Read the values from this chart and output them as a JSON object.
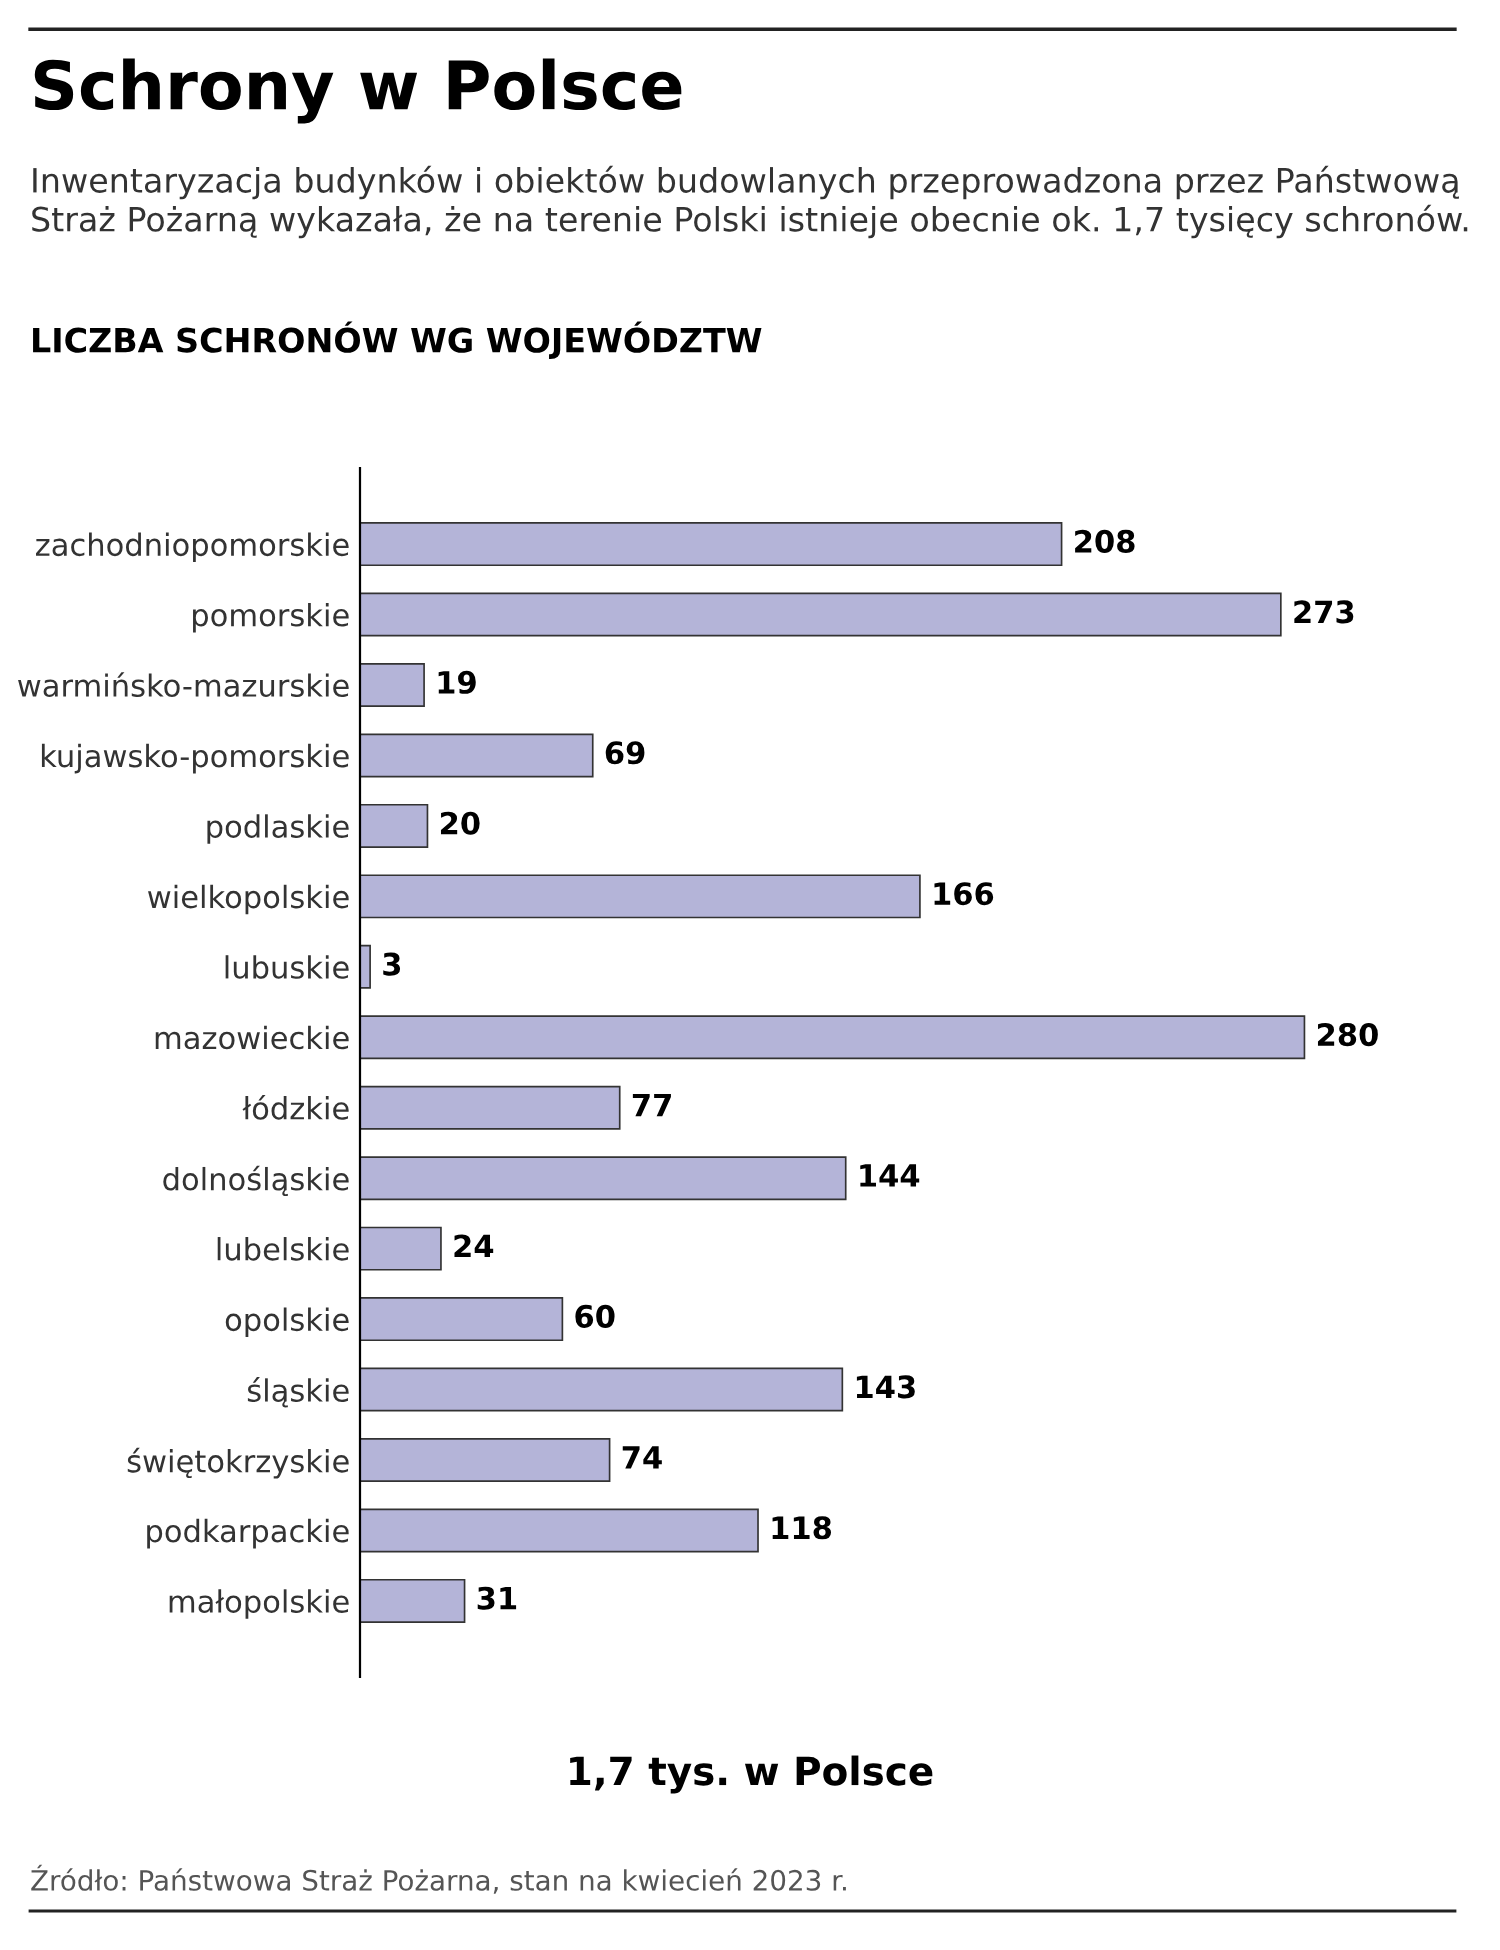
{
  "chart_data": {
    "type": "bar",
    "orientation": "horizontal",
    "title": "Schrony w Polsce",
    "subtitle": "Inwentaryzacja budynków i obiektów budowlanych przeprowadzona przez Państwową Straż Pożarną wykazała, że na terenie Polski istnieje obecnie ok. 1,7 tysięcy schronów.",
    "ylabel": "LICZBA SCHRONÓW WG WOJEWÓDZTW",
    "categories": [
      "zachodniopomorskie",
      "pomorskie",
      "warmińsko-mazurskie",
      "kujawsko-pomorskie",
      "podlaskie",
      "wielkopolskie",
      "lubuskie",
      "mazowieckie",
      "łódzkie",
      "dolnośląskie",
      "lubelskie",
      "opolskie",
      "śląskie",
      "świętokrzyskie",
      "podkarpackie",
      "małopolskie"
    ],
    "values": [
      208,
      273,
      19,
      69,
      20,
      166,
      3,
      280,
      77,
      144,
      24,
      60,
      143,
      74,
      118,
      31
    ],
    "color": "#b4b4d8",
    "data_labels": true,
    "grid": false,
    "annotations": [
      "1,7 tys. w Polsce",
      "Źródło: Państwowa Straż Pożarna, stan na kwiecień 2023 r."
    ]
  }
}
